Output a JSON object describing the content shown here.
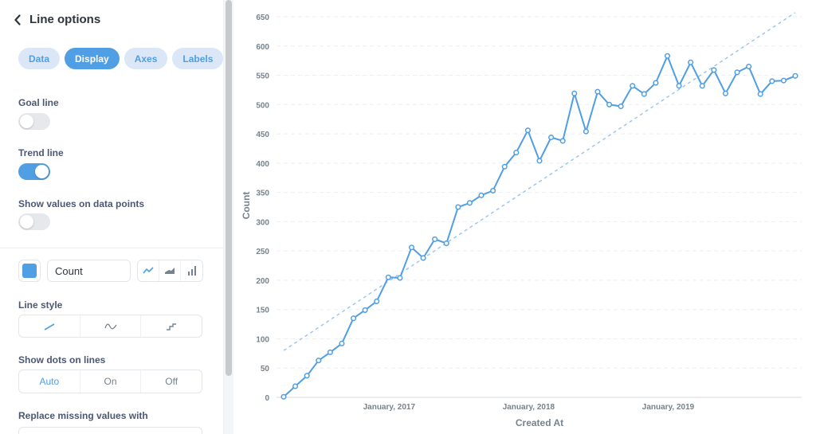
{
  "sidebar": {
    "title": "Line options",
    "tabs": [
      {
        "label": "Data",
        "active": false
      },
      {
        "label": "Display",
        "active": true
      },
      {
        "label": "Axes",
        "active": false
      },
      {
        "label": "Labels",
        "active": false
      }
    ],
    "goal_line": {
      "label": "Goal line",
      "on": false
    },
    "trend_line": {
      "label": "Trend line",
      "on": true
    },
    "show_values": {
      "label": "Show values on data points",
      "on": false
    },
    "series": {
      "color": "#509ee3",
      "name": "Count"
    },
    "line_style": {
      "label": "Line style",
      "options": [
        "linear",
        "curved",
        "stepped"
      ]
    },
    "show_dots": {
      "label": "Show dots on lines",
      "options": [
        "Auto",
        "On",
        "Off"
      ],
      "selected": "Auto"
    },
    "replace_missing": {
      "label": "Replace missing values with"
    }
  },
  "colors": {
    "accent": "#509ee3",
    "trend": "#98c3ee"
  },
  "chart_data": {
    "type": "line",
    "xlabel": "Created At",
    "ylabel": "Count",
    "ylim": [
      0,
      650
    ],
    "yticks": [
      0,
      50,
      100,
      150,
      200,
      250,
      300,
      350,
      400,
      450,
      500,
      550,
      600,
      650
    ],
    "xticks": [
      {
        "label": "January, 2017",
        "index": 9
      },
      {
        "label": "January, 2018",
        "index": 21
      },
      {
        "label": "January, 2019",
        "index": 33
      }
    ],
    "x_start": "April, 2016",
    "series": [
      {
        "name": "Count",
        "values": [
          1,
          19,
          37,
          63,
          77,
          92,
          135,
          149,
          164,
          205,
          204,
          256,
          238,
          270,
          263,
          325,
          332,
          345,
          353,
          394,
          418,
          456,
          404,
          444,
          438,
          519,
          454,
          522,
          500,
          497,
          532,
          518,
          537,
          583,
          532,
          572,
          532,
          559,
          519,
          555,
          565,
          518,
          540,
          541,
          549
        ]
      }
    ],
    "trend": {
      "start": 80,
      "end": 657
    },
    "grid": true
  }
}
